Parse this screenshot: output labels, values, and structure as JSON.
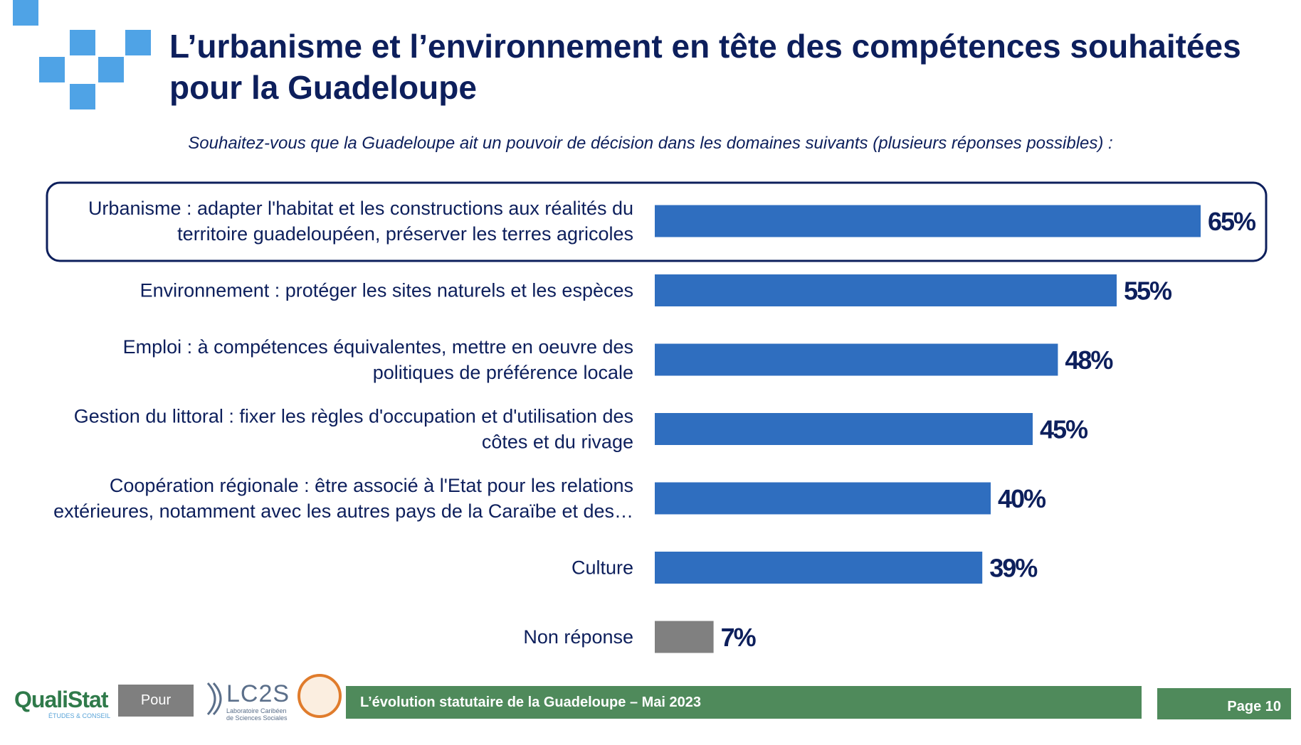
{
  "title": "L’urbanisme et l’environnement en tête des compétences souhaitées pour la Guadeloupe",
  "question": "Souhaitez-vous que la Guadeloupe ait un pouvoir de décision dans les domaines suivants (plusieurs réponses possibles) :",
  "colors": {
    "bar": "#2f6ebf",
    "bar_nonresponse": "#808080",
    "text": "#0d1f5c",
    "accent": "#4fa3e6",
    "footer": "#4f8a5b"
  },
  "chart_data": {
    "type": "bar",
    "orientation": "horizontal",
    "categories": [
      [
        "Urbanisme : adapter l'habitat et les constructions aux réalités du",
        "territoire guadeloupéen, préserver les terres agricoles"
      ],
      [
        "Environnement : protéger les sites naturels et les espèces"
      ],
      [
        "Emploi : à compétences équivalentes, mettre en oeuvre des",
        "politiques de préférence locale"
      ],
      [
        "Gestion du littoral : fixer les règles d'occupation et d'utilisation des",
        "côtes et du rivage"
      ],
      [
        "Coopération régionale : être associé à l'Etat pour les relations",
        "extérieures, notamment avec les autres pays de la Caraïbe et des…"
      ],
      [
        "Culture"
      ],
      [
        "Non réponse"
      ]
    ],
    "values": [
      65,
      55,
      48,
      45,
      40,
      39,
      7
    ],
    "value_labels": [
      "65%",
      "55%",
      "48%",
      "45%",
      "40%",
      "39%",
      "7%"
    ],
    "highlighted_index": 0,
    "xlim": [
      0,
      100
    ]
  },
  "footer": {
    "logo_name": "QualiStat",
    "logo_tagline": "ÉTUDES & CONSEIL",
    "pour": "Pour",
    "partner_name": "LC2S",
    "partner_tagline": "Laboratoire Caribéen de Sciences Sociales",
    "banner": "L’évolution statutaire de la Guadeloupe – Mai 2023",
    "page": "Page 10"
  }
}
